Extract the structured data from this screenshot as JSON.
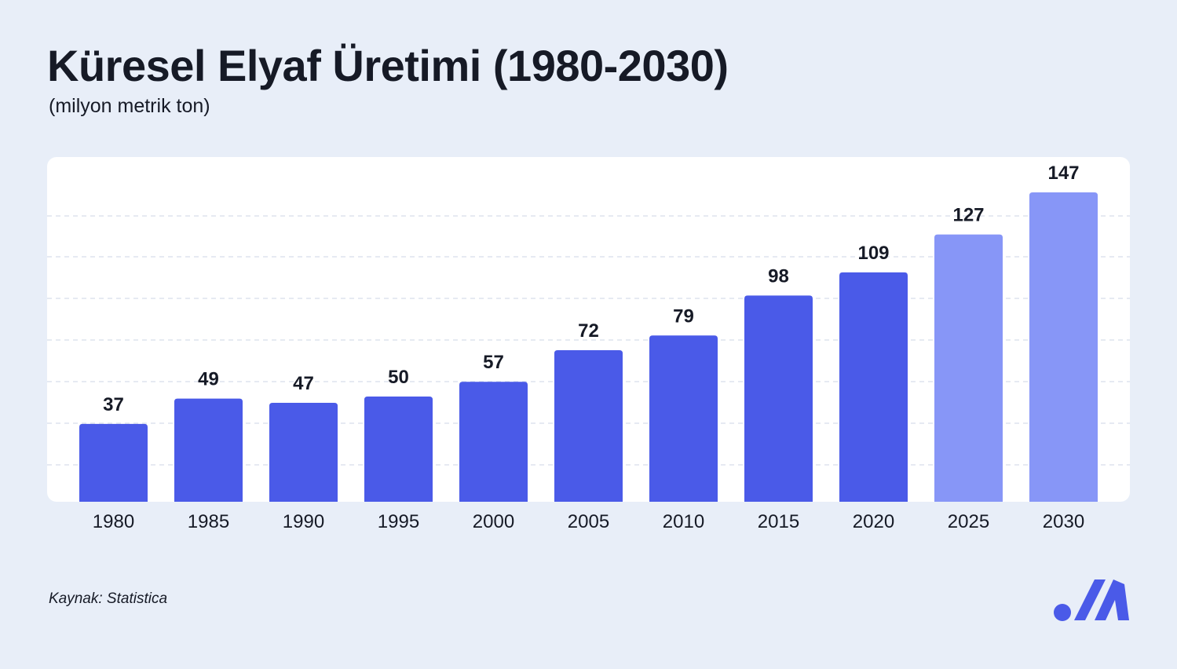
{
  "header": {
    "title": "Küresel Elyaf Üretimi (1980-2030)",
    "subtitle": "(milyon metrik ton)"
  },
  "footer": {
    "source": "Kaynak: Statistica",
    "logo_icon": "brand-logo-icon"
  },
  "colors": {
    "background": "#e8eef8",
    "panel": "#ffffff",
    "bar_actual": "#4a5ae8",
    "bar_projected": "#8796f7",
    "gridline": "#dde3ee",
    "text": "#161a26"
  },
  "chart_data": {
    "type": "bar",
    "title": "Küresel Elyaf Üretimi (1980-2030)",
    "subtitle": "(milyon metrik ton)",
    "xlabel": "",
    "ylabel": "",
    "categories": [
      "1980",
      "1985",
      "1990",
      "1995",
      "2000",
      "2005",
      "2010",
      "2015",
      "2020",
      "2025",
      "2030"
    ],
    "values": [
      37,
      49,
      47,
      50,
      57,
      72,
      79,
      98,
      109,
      127,
      147
    ],
    "projected": [
      false,
      false,
      false,
      false,
      false,
      false,
      false,
      false,
      false,
      true,
      true
    ],
    "ylim": [
      0,
      147
    ],
    "grid": true,
    "legend": "none"
  }
}
